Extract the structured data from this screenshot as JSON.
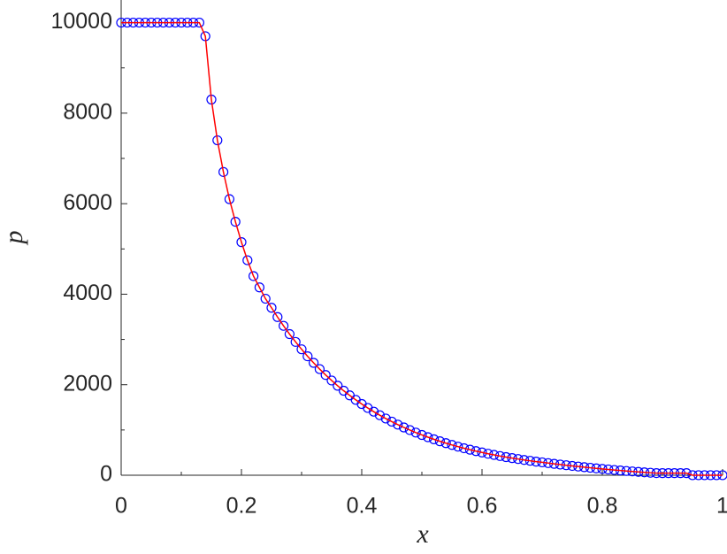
{
  "chart_data": {
    "type": "line",
    "xlabel": "x",
    "ylabel": "p",
    "xlim": [
      0,
      1
    ],
    "ylim": [
      0,
      10500
    ],
    "xticks": [
      0,
      0.2,
      0.4,
      0.6,
      0.8,
      1
    ],
    "yticks": [
      0,
      2000,
      4000,
      6000,
      8000,
      10000
    ],
    "xminorticks": [
      0.1,
      0.3,
      0.5,
      0.7,
      0.9
    ],
    "yminorticks": [
      1000,
      3000,
      5000,
      7000,
      9000
    ],
    "grid": false,
    "x": [
      0,
      0.01,
      0.02,
      0.03,
      0.04,
      0.05,
      0.06,
      0.07,
      0.08,
      0.09,
      0.1,
      0.11,
      0.12,
      0.13,
      0.14,
      0.15,
      0.16,
      0.17,
      0.18,
      0.19,
      0.2,
      0.21,
      0.22,
      0.23,
      0.24,
      0.25,
      0.26,
      0.27,
      0.28,
      0.29,
      0.3,
      0.31,
      0.32,
      0.33,
      0.34,
      0.35,
      0.36,
      0.37,
      0.38,
      0.39,
      0.4,
      0.41,
      0.42,
      0.43,
      0.44,
      0.45,
      0.46,
      0.47,
      0.48,
      0.49,
      0.5,
      0.51,
      0.52,
      0.53,
      0.54,
      0.55,
      0.56,
      0.57,
      0.58,
      0.59,
      0.6,
      0.61,
      0.62,
      0.63,
      0.64,
      0.65,
      0.66,
      0.67,
      0.68,
      0.69,
      0.7,
      0.71,
      0.72,
      0.73,
      0.74,
      0.75,
      0.76,
      0.77,
      0.78,
      0.79,
      0.8,
      0.81,
      0.82,
      0.83,
      0.84,
      0.85,
      0.86,
      0.87,
      0.88,
      0.89,
      0.9,
      0.91,
      0.92,
      0.93,
      0.94,
      0.95,
      0.96,
      0.97,
      0.98,
      0.99,
      1
    ],
    "series": [
      {
        "color": "#0000ff",
        "marker": "circle",
        "values": [
          10000,
          10000,
          10000,
          10000,
          10000,
          10000,
          10000,
          10000,
          10000,
          10000,
          10000,
          10000,
          10000,
          10000,
          9700,
          8300,
          7400,
          6700,
          6100,
          5600,
          5150,
          4750,
          4400,
          4150,
          3900,
          3700,
          3495,
          3301,
          3118,
          2946,
          2783,
          2628,
          2483,
          2345,
          2215,
          2093,
          1977,
          1867,
          1764,
          1666,
          1574,
          1487,
          1404,
          1326,
          1253,
          1184,
          1118,
          1056,
          998,
          942,
          890,
          841,
          794,
          750,
          709,
          669,
          632,
          597,
          564,
          533,
          503,
          475,
          449,
          424,
          401,
          379,
          358,
          338,
          319,
          301,
          285,
          268,
          252,
          236,
          221,
          206,
          192,
          178,
          165,
          152,
          140,
          128,
          116,
          105,
          94,
          84,
          74,
          64,
          55,
          47,
          46,
          46,
          46,
          46,
          46,
          1,
          1,
          1,
          1,
          1,
          1
        ]
      },
      {
        "color": "#ff0000",
        "marker": "none",
        "values": [
          10000,
          10000,
          10000,
          10000,
          10000,
          10000,
          10000,
          10000,
          10000,
          10000,
          10000,
          10000,
          10000,
          10000,
          9700,
          8300,
          7400,
          6700,
          6100,
          5600,
          5150,
          4750,
          4400,
          4150,
          3900,
          3700,
          3495,
          3301,
          3118,
          2946,
          2783,
          2628,
          2483,
          2345,
          2215,
          2093,
          1977,
          1867,
          1764,
          1666,
          1574,
          1487,
          1404,
          1326,
          1253,
          1184,
          1118,
          1056,
          998,
          942,
          890,
          841,
          794,
          750,
          709,
          669,
          632,
          597,
          564,
          533,
          503,
          475,
          449,
          424,
          401,
          379,
          358,
          338,
          319,
          301,
          285,
          268,
          252,
          236,
          221,
          206,
          192,
          178,
          165,
          152,
          140,
          128,
          116,
          105,
          94,
          84,
          74,
          64,
          55,
          47,
          46,
          46,
          46,
          46,
          46,
          1,
          1,
          1,
          1,
          1,
          1
        ]
      }
    ]
  }
}
